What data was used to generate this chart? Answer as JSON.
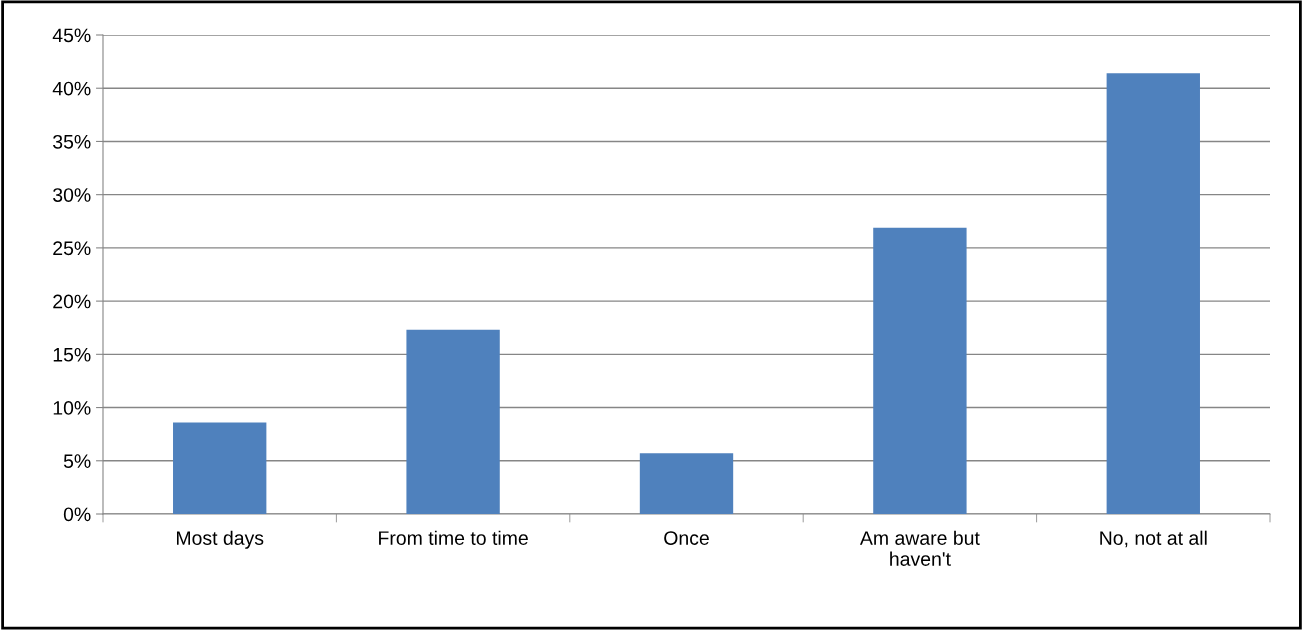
{
  "chart_data": {
    "type": "bar",
    "categories": [
      "Most days",
      "From time to time",
      "Once",
      "Am aware but\nhaven't",
      "No, not at all"
    ],
    "values": [
      8.6,
      17.3,
      5.7,
      26.9,
      41.4
    ],
    "color": "#4f81bd",
    "ylim": [
      0,
      45
    ],
    "yticks": [
      {
        "value": 0,
        "label": "0%"
      },
      {
        "value": 5,
        "label": "5%"
      },
      {
        "value": 10,
        "label": "10%"
      },
      {
        "value": 15,
        "label": "15%"
      },
      {
        "value": 20,
        "label": "20%"
      },
      {
        "value": 25,
        "label": "25%"
      },
      {
        "value": 30,
        "label": "30%"
      },
      {
        "value": 35,
        "label": "35%"
      },
      {
        "value": 40,
        "label": "40%"
      },
      {
        "value": 45,
        "label": "45%"
      }
    ],
    "grid": "y",
    "legend": false
  }
}
